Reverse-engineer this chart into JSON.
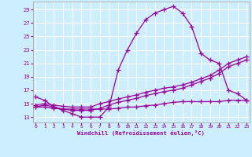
{
  "xlabel": "Windchill (Refroidissement éolien,°C)",
  "bg_color": "#cceeff",
  "grid_color": "#ffffff",
  "line_color": "#990099",
  "x_ticks": [
    0,
    1,
    2,
    3,
    4,
    5,
    6,
    7,
    8,
    9,
    10,
    11,
    12,
    13,
    14,
    15,
    16,
    17,
    18,
    19,
    20,
    21,
    22,
    23
  ],
  "y_ticks": [
    13,
    15,
    17,
    19,
    21,
    23,
    25,
    27,
    29
  ],
  "xlim": [
    -0.3,
    23.3
  ],
  "ylim": [
    12.2,
    30.2
  ],
  "line1_x": [
    0,
    1,
    2,
    3,
    4,
    5,
    6,
    7,
    8,
    9,
    10,
    11,
    12,
    13,
    14,
    15,
    16,
    17,
    18,
    19,
    20,
    21,
    22,
    23
  ],
  "line1_y": [
    16.0,
    15.5,
    14.5,
    14.0,
    13.5,
    13.0,
    13.0,
    13.0,
    14.5,
    20.0,
    23.0,
    25.5,
    27.5,
    28.5,
    29.0,
    29.5,
    28.5,
    26.5,
    22.5,
    21.5,
    21.0,
    17.0,
    16.5,
    15.5
  ],
  "line2_x": [
    0,
    1,
    2,
    3,
    4,
    5,
    6,
    7,
    8,
    9,
    10,
    11,
    12,
    13,
    14,
    15,
    16,
    17,
    18,
    19,
    20,
    21,
    22,
    23
  ],
  "line2_y": [
    14.8,
    15.0,
    14.8,
    14.6,
    14.5,
    14.5,
    14.5,
    15.0,
    15.3,
    15.7,
    16.0,
    16.3,
    16.7,
    17.0,
    17.3,
    17.5,
    17.8,
    18.2,
    18.7,
    19.2,
    20.0,
    21.0,
    21.5,
    22.0
  ],
  "line3_x": [
    0,
    1,
    2,
    3,
    4,
    5,
    6,
    7,
    8,
    9,
    10,
    11,
    12,
    13,
    14,
    15,
    16,
    17,
    18,
    19,
    20,
    21,
    22,
    23
  ],
  "line3_y": [
    14.5,
    14.8,
    14.5,
    14.2,
    14.0,
    14.0,
    14.0,
    14.3,
    14.8,
    15.2,
    15.5,
    15.8,
    16.2,
    16.5,
    16.8,
    17.0,
    17.3,
    17.8,
    18.3,
    18.8,
    19.5,
    20.5,
    21.0,
    21.5
  ],
  "line4_x": [
    0,
    1,
    2,
    3,
    4,
    5,
    6,
    7,
    8,
    9,
    10,
    11,
    12,
    13,
    14,
    15,
    16,
    17,
    18,
    19,
    20,
    21,
    22,
    23
  ],
  "line4_y": [
    14.5,
    14.5,
    14.3,
    14.2,
    14.2,
    14.2,
    14.2,
    14.2,
    14.2,
    14.3,
    14.5,
    14.5,
    14.7,
    14.8,
    15.0,
    15.2,
    15.3,
    15.3,
    15.3,
    15.3,
    15.3,
    15.5,
    15.5,
    15.5
  ]
}
